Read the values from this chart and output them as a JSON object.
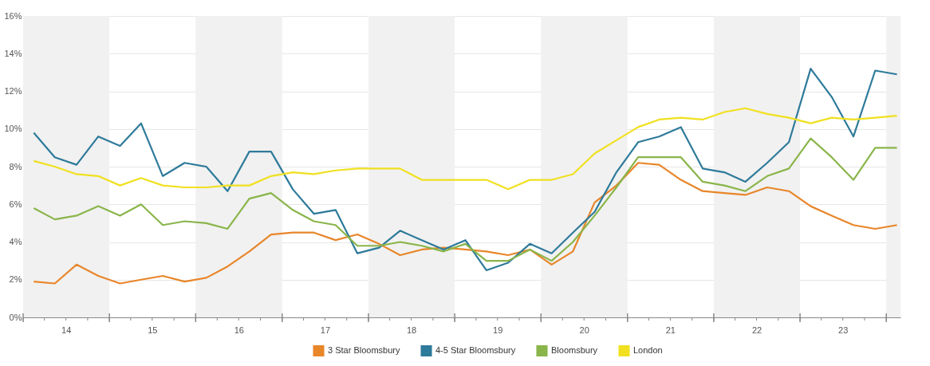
{
  "chart_data": {
    "type": "line",
    "x": [
      "2014-02-15",
      "2014-05-15",
      "2014-08-15",
      "2014-11-15",
      "2015-02-15",
      "2015-05-15",
      "2015-08-15",
      "2015-11-15",
      "2016-02-15",
      "2016-05-15",
      "2016-08-15",
      "2016-11-15",
      "2017-02-15",
      "2017-05-15",
      "2017-08-15",
      "2017-11-15",
      "2018-02-15",
      "2018-05-15",
      "2018-08-15",
      "2018-11-15",
      "2019-02-15",
      "2019-05-15",
      "2019-08-15",
      "2019-11-15",
      "2020-02-15",
      "2020-05-15",
      "2020-08-15",
      "2020-11-15",
      "2021-02-15",
      "2021-05-15",
      "2021-08-15",
      "2021-11-15",
      "2022-02-15",
      "2022-05-15",
      "2022-08-15",
      "2022-11-15",
      "2023-02-15",
      "2023-05-15",
      "2023-08-15",
      "2023-11-15",
      "2024-02-15"
    ],
    "series": [
      {
        "name": "3 Star Bloomsbury",
        "color": "#e8862a",
        "values": [
          1.9,
          1.8,
          2.8,
          2.2,
          1.8,
          2.0,
          2.2,
          1.9,
          2.1,
          2.7,
          3.5,
          4.4,
          4.5,
          4.5,
          4.1,
          4.4,
          3.9,
          3.3,
          3.6,
          3.7,
          3.6,
          3.5,
          3.3,
          3.6,
          2.8,
          3.5,
          6.1,
          7.0,
          8.2,
          8.1,
          7.3,
          6.7,
          6.6,
          6.5,
          6.9,
          6.7,
          5.9,
          5.4,
          4.9,
          4.7,
          4.9
        ]
      },
      {
        "name": "4-5 Star Bloomsbury",
        "color": "#2e7a9a",
        "values": [
          9.8,
          8.5,
          8.1,
          9.6,
          9.1,
          10.3,
          7.5,
          8.2,
          8.0,
          6.7,
          8.8,
          8.8,
          6.8,
          5.5,
          5.7,
          3.4,
          3.7,
          4.6,
          4.1,
          3.6,
          4.1,
          2.5,
          2.9,
          3.9,
          3.4,
          4.5,
          5.6,
          7.7,
          9.3,
          9.6,
          10.1,
          7.9,
          7.7,
          7.2,
          8.2,
          9.3,
          13.2,
          11.7,
          9.6,
          13.1,
          12.9
        ]
      },
      {
        "name": "Bloomsbury",
        "color": "#8ab54a",
        "values": [
          5.8,
          5.2,
          5.4,
          5.9,
          5.4,
          6.0,
          4.9,
          5.1,
          5.0,
          4.7,
          6.3,
          6.6,
          5.7,
          5.1,
          4.9,
          3.8,
          3.8,
          4.0,
          3.8,
          3.5,
          3.9,
          3.0,
          3.0,
          3.6,
          3.0,
          4.0,
          5.4,
          6.9,
          8.5,
          8.5,
          8.5,
          7.2,
          7.0,
          6.7,
          7.5,
          7.9,
          9.5,
          8.5,
          7.3,
          9.0,
          9.0
        ]
      },
      {
        "name": "London",
        "color": "#f0e020",
        "values": [
          8.3,
          8.0,
          7.6,
          7.5,
          7.0,
          7.4,
          7.0,
          6.9,
          6.9,
          7.0,
          7.0,
          7.5,
          7.7,
          7.6,
          7.8,
          7.9,
          7.9,
          7.9,
          7.3,
          7.3,
          7.3,
          7.3,
          6.8,
          7.3,
          7.3,
          7.6,
          8.7,
          9.4,
          10.1,
          10.5,
          10.6,
          10.5,
          10.9,
          11.1,
          10.8,
          10.6,
          10.3,
          10.6,
          10.5,
          10.6,
          10.7
        ]
      }
    ],
    "xlim": [
      "2014-01-01",
      "2024-03-01"
    ],
    "xticks": [
      {
        "value": "2014-01-01",
        "label": null
      },
      {
        "value": "2014-04-01",
        "label": null
      },
      {
        "value": "2014-07-01",
        "label": "14"
      },
      {
        "value": "2014-10-01",
        "label": null
      },
      {
        "value": "2015-01-01",
        "label": null
      },
      {
        "value": "2015-04-01",
        "label": null
      },
      {
        "value": "2015-07-01",
        "label": "15"
      },
      {
        "value": "2015-10-01",
        "label": null
      },
      {
        "value": "2016-01-01",
        "label": null
      },
      {
        "value": "2016-04-01",
        "label": null
      },
      {
        "value": "2016-07-01",
        "label": "16"
      },
      {
        "value": "2016-10-01",
        "label": null
      },
      {
        "value": "2017-01-01",
        "label": null
      },
      {
        "value": "2017-04-01",
        "label": null
      },
      {
        "value": "2017-07-01",
        "label": "17"
      },
      {
        "value": "2017-10-01",
        "label": null
      },
      {
        "value": "2018-01-01",
        "label": null
      },
      {
        "value": "2018-04-01",
        "label": null
      },
      {
        "value": "2018-07-01",
        "label": "18"
      },
      {
        "value": "2018-10-01",
        "label": null
      },
      {
        "value": "2019-01-01",
        "label": null
      },
      {
        "value": "2019-04-01",
        "label": null
      },
      {
        "value": "2019-07-01",
        "label": "19"
      },
      {
        "value": "2019-10-01",
        "label": null
      },
      {
        "value": "2020-01-01",
        "label": null
      },
      {
        "value": "2020-04-01",
        "label": null
      },
      {
        "value": "2020-07-01",
        "label": "20"
      },
      {
        "value": "2020-10-01",
        "label": null
      },
      {
        "value": "2021-01-01",
        "label": null
      },
      {
        "value": "2021-04-01",
        "label": null
      },
      {
        "value": "2021-07-01",
        "label": "21"
      },
      {
        "value": "2021-10-01",
        "label": null
      },
      {
        "value": "2022-01-01",
        "label": null
      },
      {
        "value": "2022-04-01",
        "label": null
      },
      {
        "value": "2022-07-01",
        "label": "22"
      },
      {
        "value": "2022-10-01",
        "label": null
      },
      {
        "value": "2023-01-01",
        "label": null
      },
      {
        "value": "2023-04-01",
        "label": null
      },
      {
        "value": "2023-07-01",
        "label": "23"
      },
      {
        "value": "2023-10-01",
        "label": null
      },
      {
        "value": "2024-01-01",
        "label": null
      }
    ],
    "ylim": [
      0,
      16
    ],
    "yticks": [
      {
        "value": 0,
        "label": "0%"
      },
      {
        "value": 2,
        "label": "2%"
      },
      {
        "value": 4,
        "label": "4%"
      },
      {
        "value": 6,
        "label": "6%"
      },
      {
        "value": 8,
        "label": "8%"
      },
      {
        "value": 10,
        "label": "10%"
      },
      {
        "value": 12,
        "label": "12%"
      },
      {
        "value": 14,
        "label": "14%"
      },
      {
        "value": 16,
        "label": "16%"
      }
    ],
    "bands": [
      {
        "axis": "x",
        "from": "2014-01-01",
        "to": "2015-01-01",
        "color": "#f1f1f1"
      },
      {
        "axis": "x",
        "from": "2016-01-01",
        "to": "2017-01-01",
        "color": "#f1f1f1"
      },
      {
        "axis": "x",
        "from": "2018-01-01",
        "to": "2019-01-01",
        "color": "#f1f1f1"
      },
      {
        "axis": "x",
        "from": "2020-01-01",
        "to": "2021-01-01",
        "color": "#f1f1f1"
      },
      {
        "axis": "x",
        "from": "2022-01-01",
        "to": "2023-01-01",
        "color": "#f1f1f1"
      },
      {
        "axis": "x",
        "from": "2024-01-01",
        "to": "2024-03-01",
        "color": "#f1f1f1"
      }
    ],
    "grid": "y",
    "legend": "bottom",
    "marker": "none",
    "line_style": "solid"
  }
}
